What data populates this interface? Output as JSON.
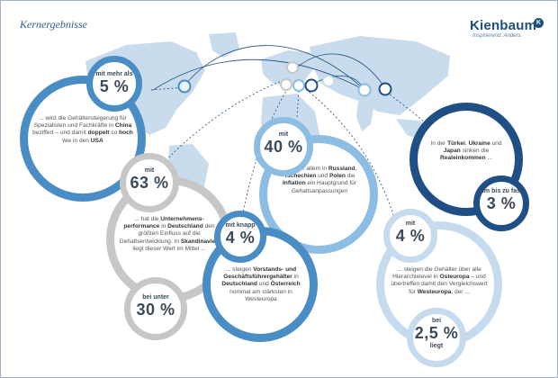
{
  "header": {
    "title": "Kernergebnisse"
  },
  "logo": {
    "name": "Kienbaum",
    "tagline": "Inspirierend. Anders.",
    "mark": "K"
  },
  "colors": {
    "dark_blue": "#1f4f85",
    "mid_blue": "#4a8cc4",
    "light_blue": "#8dbde3",
    "pale_blue": "#c6dcee",
    "grey": "#c7c7c7",
    "map": "#c9dced"
  },
  "items": [
    {
      "id": "china",
      "label": "mit mehr als",
      "value": "5 %",
      "text_html": "... wird die Gehältersteigerung für Spezialisten und Fachkräfte in <b>China</b> beziffert – und damit <b>doppelt</b> so <b>hoch</b> wie in den <b>USA</b>"
    },
    {
      "id": "russland",
      "label": "mit",
      "value": "40 %",
      "text_html": "... ist vor allem in <b>Russland</b>, <b>Tschechien</b> und <b>Polen</b> die <b>Inflation</b> ein Hauptgrund für Gehaltsanpassungen"
    },
    {
      "id": "tuerkei",
      "text_html": "In der <b>Türkei</b>, <b>Ukraine</b> und <b>Japan</b> sinken die <b>Realeinkommen</b> ...",
      "label": "um bis zu fast",
      "value": "3 %"
    },
    {
      "id": "deutschland",
      "label": "mit",
      "value": "63 %",
      "text_html": "... hat die <b>Unternehmens-performance</b> in <b>Deutschland</b> den größten Einfluss auf die Gehaltsentwicklung. In <b>Skandinavien</b> liegt dieser Wert im Mittel ...",
      "label2": "bei unter",
      "value2": "30 %"
    },
    {
      "id": "vorstand",
      "label": "mit knapp",
      "value": "4 %",
      "text_html": "... steigen <b>Vorstands- und Geschäftsführergehälter</b> in <b>Deutschland</b> und <b>Österreich</b> nominal am stärksten in Westeuropa"
    },
    {
      "id": "osteuropa",
      "label": "mit",
      "value": "4 %",
      "text_html": "... steigen die Gehälter über alle Hierarchielevel in <b>Osteuropa</b> – und übertreffen damit den Vergleichswert für <b>Westeuropa</b>, der ...",
      "label2": "bei",
      "value2": "2,5 %",
      "label3": "liegt"
    }
  ]
}
